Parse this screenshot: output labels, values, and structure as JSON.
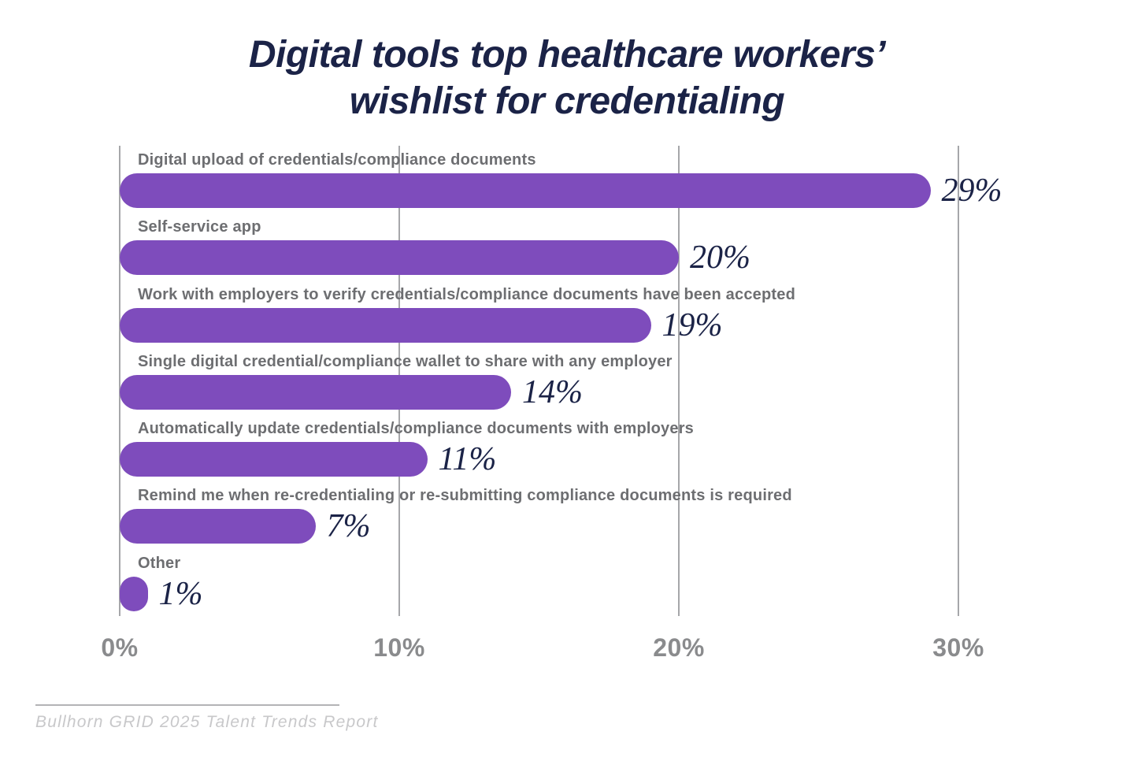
{
  "title": {
    "line1": "Digital tools top healthcare workers’",
    "line2": "wishlist for credentialing"
  },
  "chart_data": {
    "type": "bar",
    "orientation": "horizontal",
    "title": "Digital tools top healthcare workers’ wishlist for credentialing",
    "categories": [
      "Digital upload of credentials/compliance documents",
      "Self-service app",
      "Work with employers to verify credentials/compliance documents have been accepted",
      "Single digital credential/compliance wallet to share with any employer",
      "Automatically update credentials/compliance documents with employers",
      "Remind me when re-credentialing or re-submitting compliance documents is required",
      "Other"
    ],
    "values": [
      29,
      20,
      19,
      14,
      11,
      7,
      1
    ],
    "value_labels": [
      "29%",
      "20%",
      "19%",
      "14%",
      "11%",
      "7%",
      "1%"
    ],
    "xlabel": "",
    "ylabel": "",
    "xlim": [
      0,
      30
    ],
    "x_tick_values": [
      0,
      10,
      20,
      30
    ],
    "x_tick_labels": [
      "0%",
      "10%",
      "20%",
      "30%"
    ],
    "grid": true,
    "legend": false
  },
  "source": {
    "text": "Bullhorn GRID 2025 Talent Trends Report"
  },
  "colors": {
    "bar": "#7E4CBC",
    "title_text": "#1B2347",
    "value_text": "#1B2347",
    "category_label": "#6D6E71",
    "axis_tick": "#8A8B8D",
    "gridline": "#A6A7AA",
    "source_text": "#C8C8CA",
    "source_line": "#B4B4B6",
    "background": "#FFFFFF"
  }
}
